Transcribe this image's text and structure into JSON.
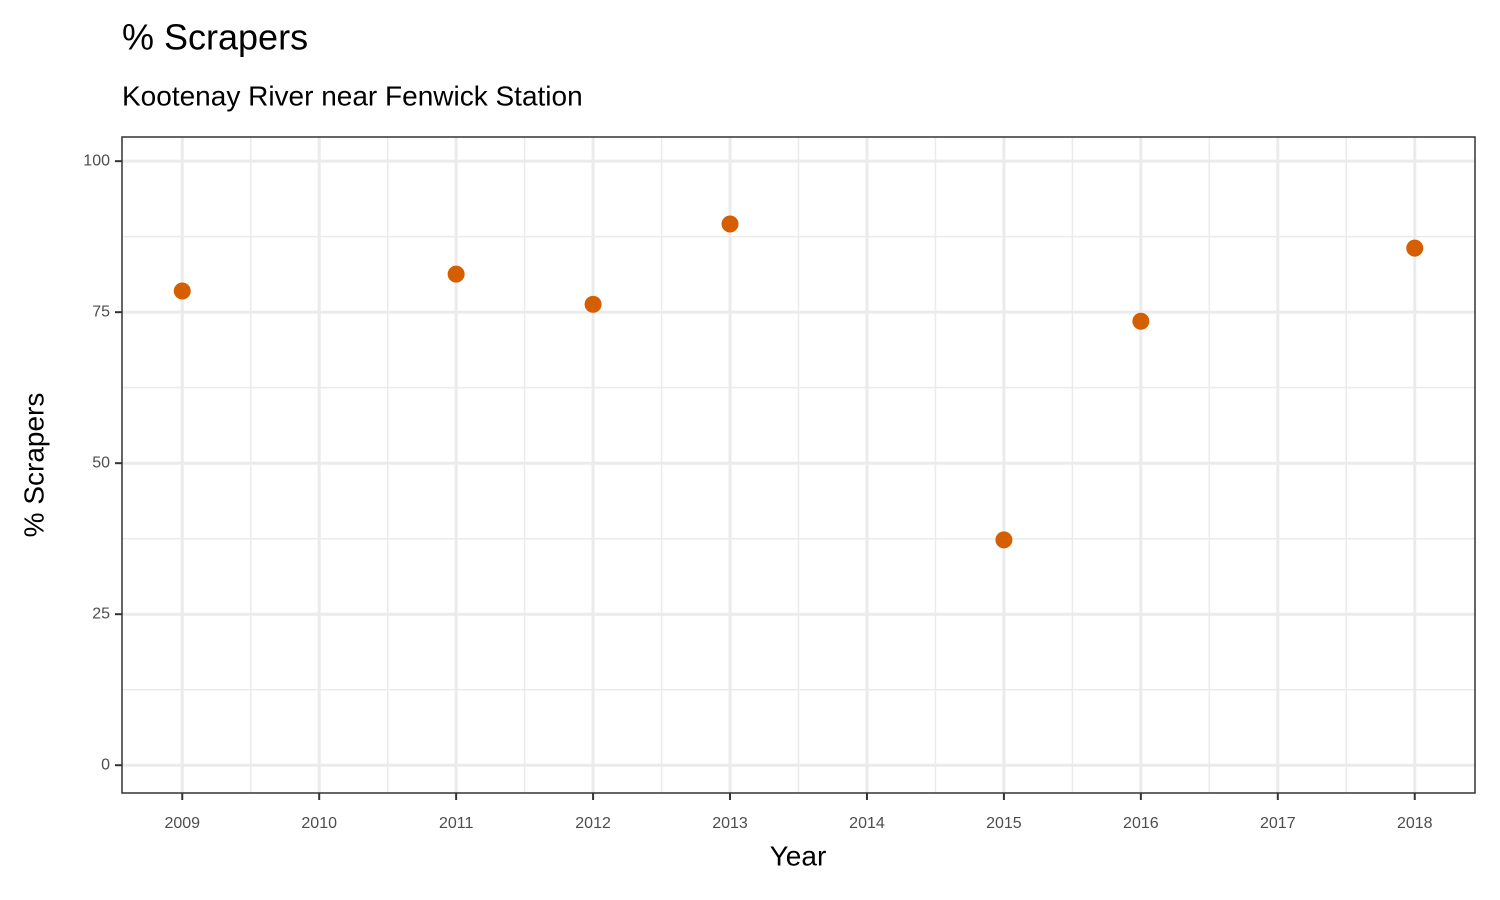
{
  "chart_data": {
    "type": "scatter",
    "title": "% Scrapers",
    "subtitle": "Kootenay River near Fenwick Station",
    "x_label": "Year",
    "y_label": "% Scrapers",
    "x": [
      2009,
      2011,
      2012,
      2013,
      2015,
      2016,
      2018
    ],
    "values": [
      78.5,
      81.3,
      76.3,
      89.6,
      37.3,
      73.5,
      85.6
    ],
    "color": "#d55e00",
    "xlim": [
      2008.56,
      2018.44
    ],
    "xticks": [
      2009,
      2010,
      2011,
      2012,
      2013,
      2014,
      2015,
      2016,
      2017,
      2018
    ],
    "ylim": [
      -4.6,
      104
    ],
    "yticks": [
      0,
      25,
      50,
      75,
      100
    ],
    "grid": true
  }
}
